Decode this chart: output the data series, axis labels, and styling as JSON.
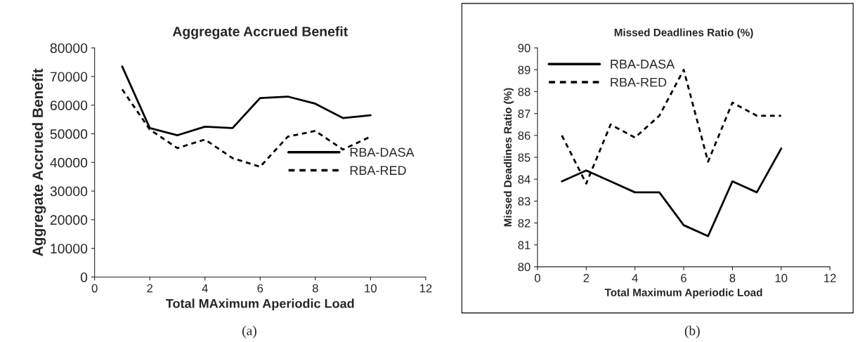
{
  "chart_data": [
    {
      "type": "line",
      "title": "Aggregate Accrued Benefit",
      "xlabel": "Total MAximum Aperiodic Load",
      "ylabel": "Aggregate Accrued Benefit",
      "x": [
        1,
        2,
        3,
        4,
        5,
        6,
        7,
        8,
        9,
        10
      ],
      "series": [
        {
          "name": "RBA-DASA",
          "color": "#000000",
          "line_style": "solid",
          "values": [
            73500,
            52000,
            49500,
            52500,
            52000,
            62500,
            63000,
            60500,
            55500,
            56500
          ]
        },
        {
          "name": "RBA-RED",
          "color": "#000000",
          "line_style": "dotted",
          "values": [
            65500,
            51500,
            45000,
            48000,
            41500,
            38500,
            49000,
            51000,
            44500,
            49000
          ]
        }
      ],
      "xlim": [
        0,
        12
      ],
      "xticks": [
        0,
        2,
        4,
        6,
        8,
        10,
        12
      ],
      "ylim": [
        0,
        80000
      ],
      "yticks": [
        0,
        10000,
        20000,
        30000,
        40000,
        50000,
        60000,
        70000,
        80000
      ],
      "grid": false,
      "legend": "right",
      "annotations": [
        "(a)"
      ]
    },
    {
      "type": "line",
      "title": "Missed Deadlines Ratio (%)",
      "xlabel": "Total Maximum Aperiodic Load",
      "ylabel": "Missed Deadlines Ratio (%)",
      "x": [
        1,
        2,
        3,
        4,
        5,
        6,
        7,
        8,
        9,
        10
      ],
      "series": [
        {
          "name": "RBA-DASA",
          "color": "#000000",
          "line_style": "solid",
          "values": [
            83.9,
            84.4,
            83.9,
            83.4,
            83.4,
            81.9,
            81.4,
            83.9,
            83.4,
            85.4
          ]
        },
        {
          "name": "RBA-RED",
          "color": "#000000",
          "line_style": "dotted",
          "values": [
            86.0,
            83.8,
            86.5,
            85.9,
            86.9,
            89.0,
            84.8,
            87.5,
            86.9,
            86.9
          ]
        }
      ],
      "xlim": [
        0,
        12
      ],
      "xticks": [
        0,
        2,
        4,
        6,
        8,
        10,
        12
      ],
      "ylim": [
        80,
        90
      ],
      "yticks": [
        80,
        81,
        82,
        83,
        84,
        85,
        86,
        87,
        88,
        89,
        90
      ],
      "grid": false,
      "legend": "top left",
      "annotations": [
        "(b)"
      ]
    }
  ]
}
